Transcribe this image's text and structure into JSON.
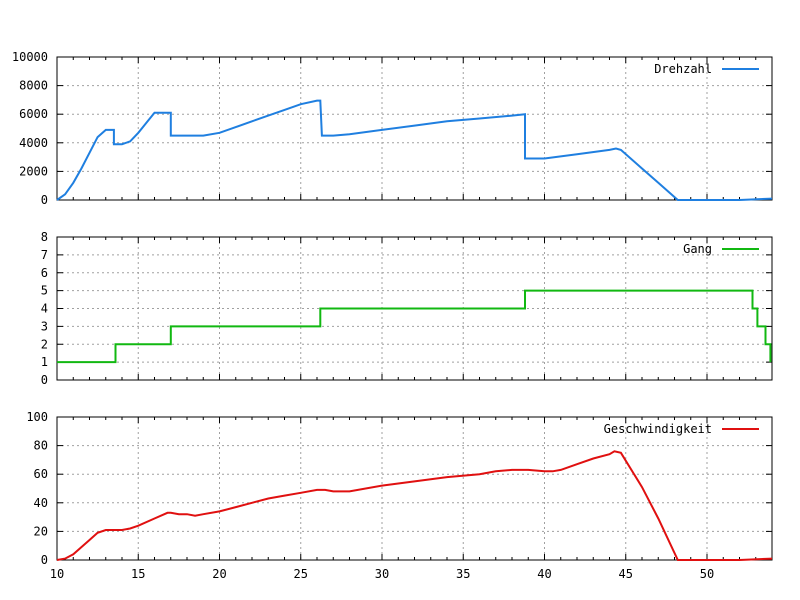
{
  "chart_data": [
    {
      "type": "line",
      "title": "",
      "xlabel": "",
      "ylabel": "",
      "xlim": [
        10,
        54
      ],
      "ylim": [
        0,
        10000
      ],
      "x_ticks": [
        10,
        15,
        20,
        25,
        30,
        35,
        40,
        45,
        50
      ],
      "y_ticks": [
        0,
        2000,
        4000,
        6000,
        8000,
        10000
      ],
      "y_tick_labels": [
        "0",
        "2000",
        "4000",
        "6000",
        "8000",
        "10000"
      ],
      "x_tick_labels": [
        "",
        "",
        "",
        "",
        "",
        "",
        "",
        "",
        ""
      ],
      "grid": true,
      "legend_position": "top-right",
      "series": [
        {
          "name": "Drehzahl",
          "color": "#1f7fe0",
          "x": [
            10,
            10.5,
            11,
            11.5,
            12,
            12.5,
            13,
            13.5,
            13.5,
            14,
            14.5,
            15,
            15.5,
            16,
            16.5,
            17,
            17,
            18,
            19,
            20,
            21,
            22,
            23,
            24,
            25,
            26,
            26.2,
            26.3,
            27,
            28,
            30,
            32,
            34,
            36,
            38,
            38.8,
            38.8,
            40,
            42,
            44,
            44.4,
            44.7,
            46,
            47,
            48.2,
            50,
            52,
            54
          ],
          "y": [
            0,
            400,
            1200,
            2200,
            3300,
            4400,
            4900,
            4900,
            3900,
            3900,
            4100,
            4700,
            5400,
            6100,
            6100,
            6100,
            4500,
            4500,
            4500,
            4700,
            5100,
            5500,
            5900,
            6300,
            6700,
            6950,
            6950,
            4500,
            4500,
            4600,
            4900,
            5200,
            5500,
            5700,
            5900,
            6000,
            2900,
            2900,
            3200,
            3500,
            3600,
            3500,
            2200,
            1200,
            0,
            0,
            0,
            100
          ]
        }
      ]
    },
    {
      "type": "line",
      "title": "",
      "xlabel": "",
      "ylabel": "",
      "xlim": [
        10,
        54
      ],
      "ylim": [
        0,
        8
      ],
      "x_ticks": [
        10,
        15,
        20,
        25,
        30,
        35,
        40,
        45,
        50
      ],
      "y_ticks": [
        0,
        1,
        2,
        3,
        4,
        5,
        6,
        7,
        8
      ],
      "y_tick_labels": [
        "0",
        "1",
        "2",
        "3",
        "4",
        "5",
        "6",
        "7",
        "8"
      ],
      "x_tick_labels": [
        "",
        "",
        "",
        "",
        "",
        "",
        "",
        "",
        ""
      ],
      "grid": true,
      "legend_position": "top-right",
      "series": [
        {
          "name": "Gang",
          "color": "#11b811",
          "x": [
            10,
            13.6,
            13.6,
            17,
            17,
            26.2,
            26.2,
            38.8,
            38.8,
            52.8,
            52.8,
            53.1,
            53.1,
            53.6,
            53.6,
            53.9,
            53.9
          ],
          "y": [
            1,
            1,
            2,
            2,
            3,
            3,
            4,
            4,
            5,
            5,
            4,
            4,
            3,
            3,
            2,
            2,
            1
          ]
        }
      ]
    },
    {
      "type": "line",
      "title": "",
      "xlabel": "",
      "ylabel": "",
      "xlim": [
        10,
        54
      ],
      "ylim": [
        0,
        100
      ],
      "x_ticks": [
        10,
        15,
        20,
        25,
        30,
        35,
        40,
        45,
        50
      ],
      "y_ticks": [
        0,
        20,
        40,
        60,
        80,
        100
      ],
      "y_tick_labels": [
        "0",
        "20",
        "40",
        "60",
        "80",
        "100"
      ],
      "x_tick_labels": [
        "10",
        "15",
        "20",
        "25",
        "30",
        "35",
        "40",
        "45",
        "50"
      ],
      "grid": true,
      "legend_position": "top-right",
      "series": [
        {
          "name": "Geschwindigkeit",
          "color": "#e01010",
          "x": [
            10,
            10.5,
            11,
            11.5,
            12,
            12.5,
            13,
            13.5,
            14,
            14.5,
            15,
            16,
            16.8,
            17,
            17.5,
            18,
            18.5,
            19,
            20,
            21,
            22,
            23,
            24,
            25,
            26,
            26.5,
            27,
            27.5,
            28,
            30,
            32,
            34,
            36,
            37,
            38,
            38.5,
            39,
            40,
            40.5,
            41,
            42,
            43,
            44,
            44.3,
            44.7,
            46,
            47,
            48.2,
            50,
            52,
            54
          ],
          "y": [
            0,
            1,
            4,
            9,
            14,
            19,
            21,
            21,
            21,
            22,
            24,
            29,
            33,
            33,
            32,
            32,
            31,
            32,
            34,
            37,
            40,
            43,
            45,
            47,
            49,
            49,
            48,
            48,
            48,
            52,
            55,
            58,
            60,
            62,
            63,
            63,
            63,
            62,
            62,
            63,
            67,
            71,
            74,
            76,
            75,
            51,
            29,
            0,
            0,
            0,
            1
          ]
        }
      ]
    }
  ]
}
